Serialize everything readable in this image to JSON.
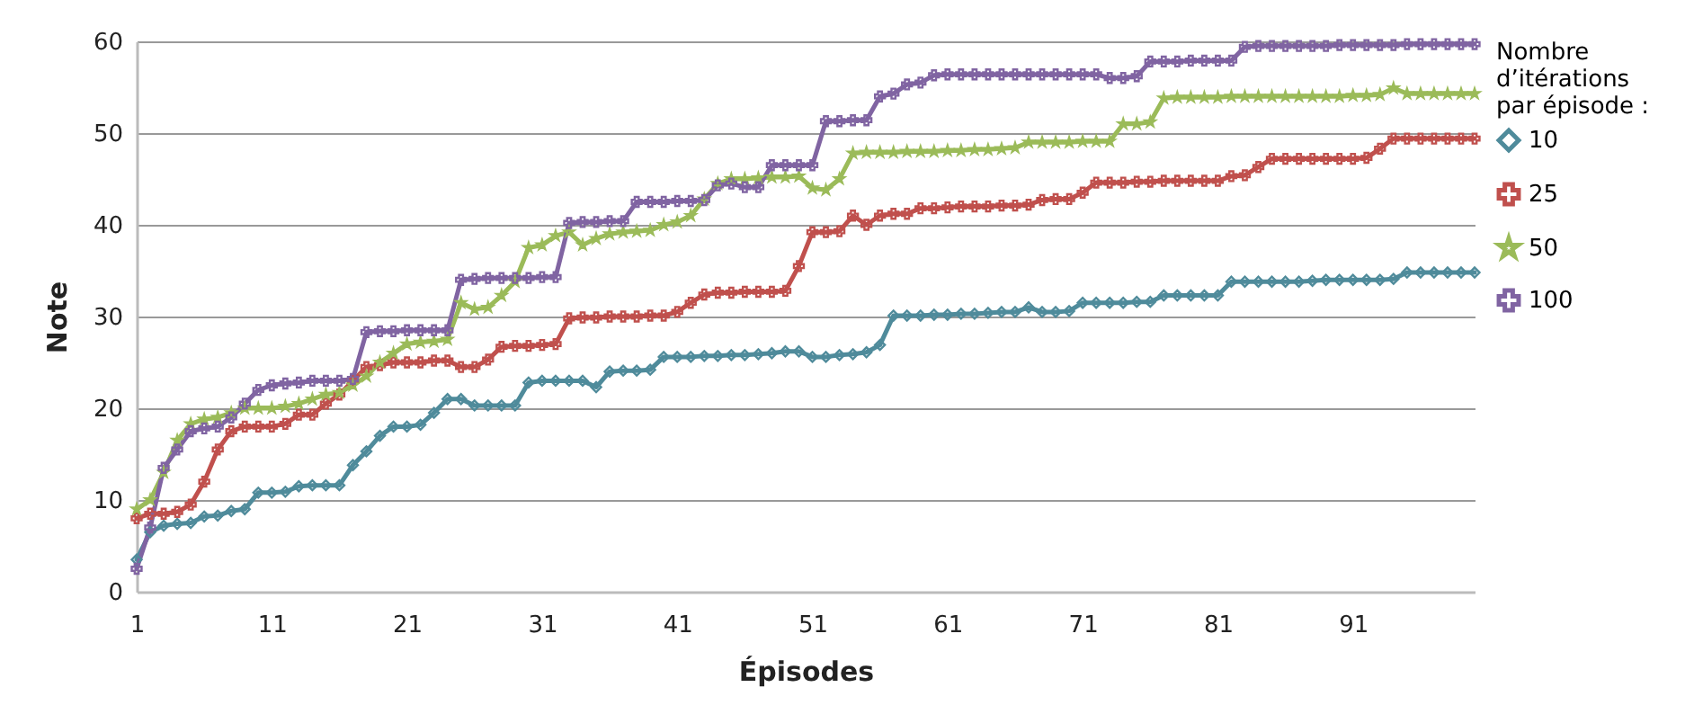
{
  "chart_data": {
    "type": "line",
    "xlabel": "Épisodes",
    "ylabel": "Note",
    "legend_title": "Nombre\nd’itérations\npar épisode :",
    "legend": "right",
    "grid": "y",
    "line_style": "solid",
    "x": [
      1,
      2,
      3,
      4,
      5,
      6,
      7,
      8,
      9,
      10,
      11,
      12,
      13,
      14,
      15,
      16,
      17,
      18,
      19,
      20,
      21,
      22,
      23,
      24,
      25,
      26,
      27,
      28,
      29,
      30,
      31,
      32,
      33,
      34,
      35,
      36,
      37,
      38,
      39,
      40,
      41,
      42,
      43,
      44,
      45,
      46,
      47,
      48,
      49,
      50,
      51,
      52,
      53,
      54,
      55,
      56,
      57,
      58,
      59,
      60,
      61,
      62,
      63,
      64,
      65,
      66,
      67,
      68,
      69,
      70,
      71,
      72,
      73,
      74,
      75,
      76,
      77,
      78,
      79,
      80,
      81,
      82,
      83,
      84,
      85,
      86,
      87,
      88,
      89,
      90,
      91,
      92,
      93,
      94,
      95,
      96,
      97,
      98,
      99,
      100
    ],
    "xlim": [
      1,
      100
    ],
    "xticks": [
      1,
      11,
      21,
      31,
      41,
      51,
      61,
      71,
      81,
      91
    ],
    "ylim": [
      0,
      60
    ],
    "yticks": [
      0,
      10,
      20,
      30,
      40,
      50,
      60
    ],
    "series": [
      {
        "name": "10",
        "color": "#4f8b9b",
        "marker": "diamond",
        "values": [
          3.5,
          6.5,
          7.2,
          7.4,
          7.5,
          8.2,
          8.3,
          8.8,
          9,
          10.8,
          10.8,
          10.9,
          11.5,
          11.6,
          11.6,
          11.6,
          13.8,
          15.3,
          17,
          18,
          18,
          18.2,
          19.5,
          21,
          21,
          20.3,
          20.3,
          20.3,
          20.3,
          22.8,
          23,
          23,
          23,
          23,
          22.3,
          24,
          24.1,
          24.1,
          24.2,
          25.6,
          25.6,
          25.6,
          25.7,
          25.7,
          25.8,
          25.8,
          25.9,
          26,
          26.2,
          26.2,
          25.6,
          25.6,
          25.8,
          25.9,
          26.1,
          26.9,
          30.1,
          30.1,
          30.1,
          30.2,
          30.2,
          30.3,
          30.3,
          30.4,
          30.5,
          30.5,
          31,
          30.5,
          30.5,
          30.6,
          31.5,
          31.5,
          31.5,
          31.5,
          31.6,
          31.6,
          32.3,
          32.3,
          32.3,
          32.3,
          32.3,
          33.8,
          33.8,
          33.8,
          33.8,
          33.8,
          33.8,
          33.9,
          34,
          34,
          34,
          34,
          34,
          34.1,
          34.8,
          34.8,
          34.8,
          34.8,
          34.8,
          34.8
        ]
      },
      {
        "name": "25",
        "color": "#c0504d",
        "marker": "cross",
        "values": [
          8,
          8.5,
          8.5,
          8.7,
          9.5,
          12,
          15.5,
          17.5,
          18,
          18,
          18,
          18.3,
          19.3,
          19.3,
          20.5,
          21.5,
          23,
          24.5,
          24.7,
          25,
          25,
          25,
          25.2,
          25.2,
          24.5,
          24.5,
          25.3,
          26.7,
          26.8,
          26.8,
          26.9,
          27,
          29.8,
          29.9,
          29.9,
          30,
          30,
          30,
          30.1,
          30.1,
          30.5,
          31.5,
          32.4,
          32.6,
          32.6,
          32.7,
          32.7,
          32.7,
          32.8,
          35.5,
          39.2,
          39.2,
          39.3,
          41,
          40,
          41,
          41.2,
          41.2,
          41.8,
          41.8,
          41.9,
          42,
          42,
          42,
          42.1,
          42.1,
          42.2,
          42.7,
          42.8,
          42.8,
          43.5,
          44.6,
          44.6,
          44.6,
          44.7,
          44.7,
          44.8,
          44.8,
          44.8,
          44.8,
          44.8,
          45.3,
          45.4,
          46.3,
          47.2,
          47.2,
          47.2,
          47.2,
          47.2,
          47.2,
          47.2,
          47.3,
          48.3,
          49.4,
          49.4,
          49.4,
          49.4,
          49.4,
          49.4,
          49.4
        ]
      },
      {
        "name": "50",
        "color": "#9bbb59",
        "marker": "star",
        "values": [
          9,
          10,
          13,
          16.5,
          18.3,
          18.8,
          19,
          19.5,
          20,
          20,
          20,
          20.2,
          20.5,
          21,
          21.5,
          21.7,
          22.5,
          23.5,
          25,
          26,
          27,
          27.2,
          27.3,
          27.5,
          31.5,
          30.8,
          31,
          32.3,
          33.8,
          37.5,
          37.8,
          38.8,
          39.2,
          37.8,
          38.5,
          39,
          39.2,
          39.3,
          39.4,
          40,
          40.3,
          41,
          42.8,
          44.5,
          45,
          45,
          45.1,
          45.2,
          45.2,
          45.3,
          44,
          43.8,
          45,
          47.8,
          47.9,
          47.9,
          47.9,
          48,
          48,
          48,
          48.1,
          48.1,
          48.2,
          48.2,
          48.3,
          48.4,
          49,
          49,
          49,
          49,
          49.1,
          49.1,
          49.1,
          51,
          51,
          51.2,
          53.8,
          53.9,
          53.9,
          53.9,
          53.9,
          54,
          54,
          54,
          54,
          54,
          54,
          54,
          54,
          54,
          54.1,
          54.1,
          54.2,
          54.9,
          54.3,
          54.3,
          54.3,
          54.3,
          54.3,
          54.3
        ]
      },
      {
        "name": "100",
        "color": "#8064a2",
        "marker": "cross",
        "values": [
          2.5,
          7,
          13.5,
          15.5,
          17.5,
          17.8,
          18,
          19,
          20.5,
          22,
          22.5,
          22.7,
          22.8,
          23,
          23,
          23,
          23.2,
          28.3,
          28.4,
          28.4,
          28.5,
          28.5,
          28.5,
          28.5,
          34,
          34.1,
          34.2,
          34.2,
          34.2,
          34.2,
          34.3,
          34.3,
          40.2,
          40.3,
          40.3,
          40.4,
          40.4,
          42.5,
          42.5,
          42.5,
          42.6,
          42.6,
          42.7,
          44.3,
          44.5,
          44.1,
          44.1,
          46.5,
          46.5,
          46.5,
          46.5,
          51.3,
          51.3,
          51.4,
          51.4,
          54,
          54.3,
          55.3,
          55.5,
          56.3,
          56.4,
          56.4,
          56.4,
          56.4,
          56.4,
          56.4,
          56.4,
          56.4,
          56.4,
          56.4,
          56.4,
          56.4,
          56,
          56,
          56.2,
          57.8,
          57.8,
          57.8,
          57.9,
          57.9,
          57.9,
          57.9,
          59.4,
          59.5,
          59.5,
          59.5,
          59.5,
          59.5,
          59.5,
          59.6,
          59.6,
          59.6,
          59.6,
          59.6,
          59.7,
          59.7,
          59.7,
          59.7,
          59.7,
          59.7
        ]
      }
    ]
  }
}
